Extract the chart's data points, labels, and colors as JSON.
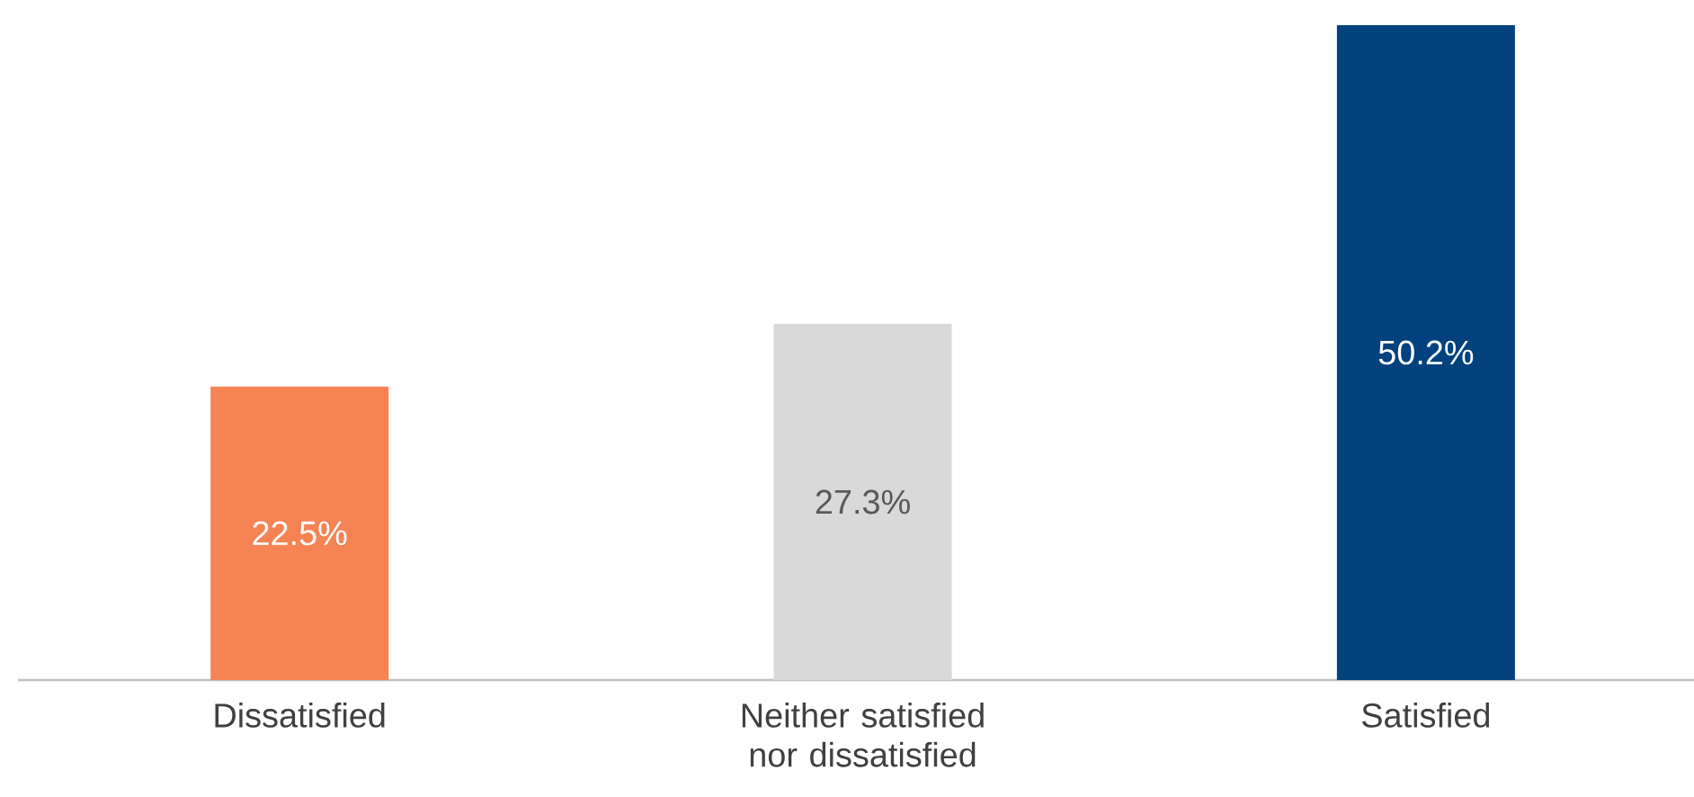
{
  "chart_data": {
    "type": "bar",
    "categories": [
      "Dissatisfied",
      "Neither satisfied nor dissatisfied",
      "Satisfied"
    ],
    "values": [
      22.5,
      27.3,
      50.2
    ],
    "colors": [
      "#f58354",
      "#d9d9d9",
      "#03427e"
    ],
    "value_labels": [
      "22.5%",
      "27.3%",
      "50.2%"
    ]
  }
}
